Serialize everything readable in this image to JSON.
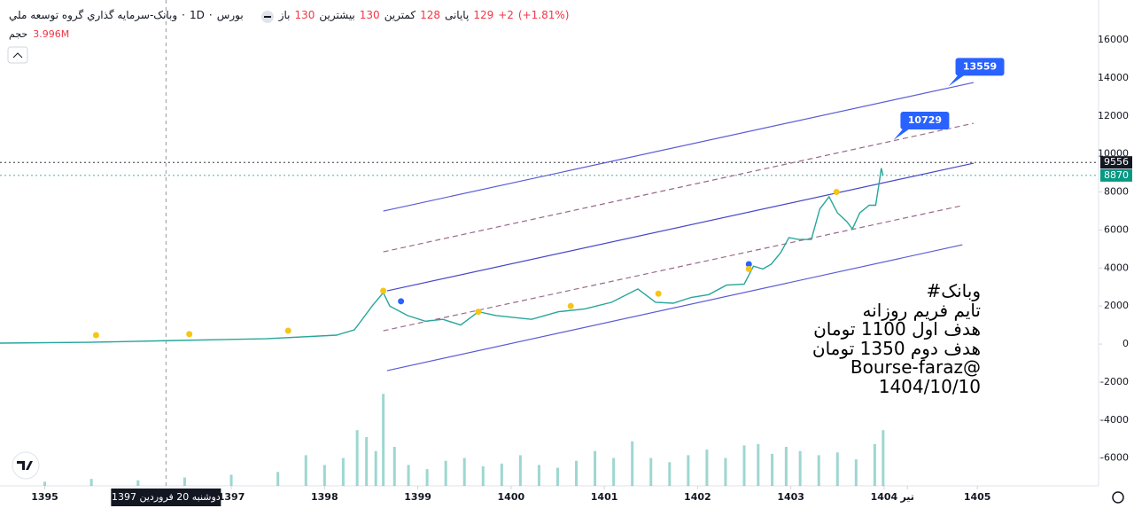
{
  "header": {
    "name": "وبانک-سرمایه گذاري گروه توسعه ملي",
    "interval": "1D",
    "exchange": "بورس",
    "ohlc": [
      {
        "label": "باز",
        "value": 130
      },
      {
        "label": "بیشترین",
        "value": 130
      },
      {
        "label": "کمترین",
        "value": 128
      },
      {
        "label": "پایانی",
        "value": 129
      }
    ],
    "change": "+2",
    "change_percent": "(+1.81%)",
    "volume_label": "حجم",
    "volume": "3.996M"
  },
  "chart_data": {
    "type": "line",
    "color": "#26a69a",
    "x": [
      1394.52,
      1395.47,
      1396.42,
      1397.37,
      1398.13,
      1398.32,
      1398.42,
      1398.51,
      1398.63,
      1398.7,
      1398.89,
      1399.08,
      1399.27,
      1399.46,
      1399.65,
      1399.84,
      1400.22,
      1400.51,
      1400.79,
      1401.08,
      1401.36,
      1401.55,
      1401.74,
      1401.93,
      1402.12,
      1402.31,
      1402.5,
      1402.6,
      1402.7,
      1402.79,
      1402.89,
      1402.98,
      1403.08,
      1403.22,
      1403.31,
      1403.41,
      1403.5,
      1403.6,
      1403.66,
      1403.74,
      1403.84,
      1403.91,
      1403.95,
      1403.97,
      1403.99
    ],
    "values": [
      50,
      90,
      190,
      280,
      470,
      750,
      1400,
      2000,
      2700,
      2000,
      1500,
      1200,
      1300,
      1000,
      1700,
      1500,
      1300,
      1700,
      1850,
      2200,
      2900,
      2200,
      2150,
      2450,
      2600,
      3100,
      3150,
      4100,
      3950,
      4200,
      4800,
      5600,
      5500,
      5500,
      7100,
      7750,
      6900,
      6450,
      6050,
      6900,
      7300,
      7300,
      8550,
      9250,
      8870
    ],
    "volume": {
      "color": "#26a69a",
      "ylim": [
        0,
        7
      ],
      "x": [
        1395.0,
        1395.5,
        1396.0,
        1396.5,
        1397.0,
        1397.5,
        1397.8,
        1398.0,
        1398.2,
        1398.35,
        1398.45,
        1398.55,
        1398.63,
        1398.75,
        1398.9,
        1399.1,
        1399.3,
        1399.5,
        1399.7,
        1399.9,
        1400.1,
        1400.3,
        1400.5,
        1400.7,
        1400.9,
        1401.1,
        1401.3,
        1401.5,
        1401.7,
        1401.9,
        1402.1,
        1402.3,
        1402.5,
        1402.65,
        1402.8,
        1402.95,
        1403.1,
        1403.3,
        1403.5,
        1403.7,
        1403.9,
        1403.99
      ],
      "values": [
        0.3,
        0.5,
        0.4,
        0.6,
        0.8,
        1.0,
        2.2,
        1.5,
        2.0,
        4.0,
        3.5,
        2.5,
        6.6,
        2.8,
        1.5,
        1.2,
        1.8,
        2.0,
        1.4,
        1.6,
        2.2,
        1.5,
        1.3,
        1.8,
        2.5,
        2.0,
        3.2,
        2.0,
        1.7,
        2.2,
        2.6,
        2.0,
        2.9,
        3.0,
        2.3,
        2.8,
        2.5,
        2.2,
        2.4,
        1.9,
        3.0,
        3.996
      ]
    },
    "xlim": [
      1394.52,
      1406.3
    ],
    "xticks": [
      1395,
      1397,
      1398,
      1399,
      1400,
      1401,
      1402,
      1403,
      1404,
      {
        "value": 1404.25,
        "label": "تیر"
      },
      1405
    ],
    "ylim": [
      -7460,
      18100
    ],
    "yticks": [
      16000,
      14000,
      12000,
      10000,
      8000,
      6000,
      4000,
      2000,
      0,
      -2000,
      -4000,
      -6000
    ],
    "crosshair": {
      "x": 1396.3,
      "label": "دوشنبه 20 فروردین 1397"
    },
    "price_lines": [
      {
        "value": 9556,
        "color": "#131722"
      },
      {
        "value": 8870,
        "color": "#089981"
      }
    ],
    "trend_lines": [
      {
        "x": [
          1398.63,
          1404.96
        ],
        "y": [
          6996,
          13759
        ],
        "style": "solid",
        "color": "#5b5bd6"
      },
      {
        "x": [
          1398.63,
          1404.96
        ],
        "y": [
          4851,
          11614
        ],
        "style": "dashed",
        "color": "#9a6a8c"
      },
      {
        "x": [
          1398.67,
          1404.96
        ],
        "y": [
          2798,
          9515
        ],
        "style": "solid",
        "color": "#4646c8"
      },
      {
        "x": [
          1398.63,
          1404.83
        ],
        "y": [
          700,
          7276
        ],
        "style": "dashed",
        "color": "#9a6a8c"
      },
      {
        "x": [
          1398.67,
          1404.84
        ],
        "y": [
          -1399,
          5224
        ],
        "style": "solid",
        "color": "#5b5bd6"
      }
    ],
    "callouts": [
      {
        "x": 1404.69,
        "value": 13559
      },
      {
        "x": 1404.1,
        "value": 10729
      }
    ],
    "event_markers": [
      {
        "x": 1395.55,
        "y": 470,
        "color": "#f5c518"
      },
      {
        "x": 1396.55,
        "y": 520,
        "color": "#f5c518"
      },
      {
        "x": 1397.61,
        "y": 700,
        "color": "#f5c518"
      },
      {
        "x": 1398.63,
        "y": 2800,
        "color": "#f5c518"
      },
      {
        "x": 1398.82,
        "y": 2250,
        "color": "#2962ff"
      },
      {
        "x": 1399.65,
        "y": 1700,
        "color": "#f5c518"
      },
      {
        "x": 1400.64,
        "y": 2000,
        "color": "#f5c518"
      },
      {
        "x": 1401.58,
        "y": 2650,
        "color": "#f5c518"
      },
      {
        "x": 1402.55,
        "y": 4200,
        "color": "#2962ff"
      },
      {
        "x": 1402.55,
        "y": 3950,
        "color": "#f5c518"
      },
      {
        "x": 1403.49,
        "y": 8000,
        "color": "#f5c518"
      }
    ],
    "annotation": [
      "#وبانک",
      "تایم فریم روزانه",
      "هدف اول 1100 تومان",
      "هدف دوم 1350 تومان",
      "Bourse-faraz@",
      "1404/10/10"
    ]
  }
}
